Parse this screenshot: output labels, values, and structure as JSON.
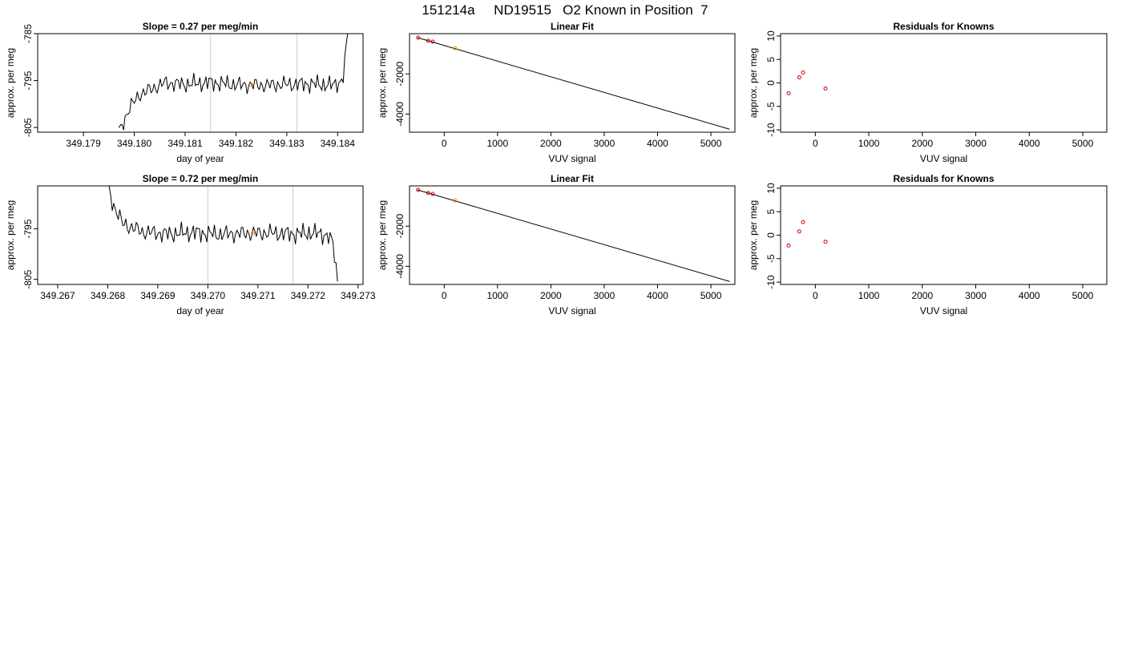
{
  "page_title": "151214a     ND19515   O2 Known in Position  7",
  "colors": {
    "trace": "#000000",
    "known_point": "#cc0000",
    "sample_point": "#ff8c00",
    "marker_line": "#cccccc",
    "axis": "#000000"
  },
  "chart_data": [
    {
      "id": "p1",
      "type": "line",
      "title": "Slope =  0.27  per meg/min",
      "xlabel": "day of year",
      "ylabel": "approx. per meg",
      "xlim": [
        349.1781,
        349.1845
      ],
      "ylim": [
        -806,
        -785
      ],
      "xticks": [
        "349.179",
        "349.180",
        "349.181",
        "349.182",
        "349.183",
        "349.184"
      ],
      "yticks": [
        "-805",
        "-795",
        "-785"
      ],
      "vlines": [
        349.1815,
        349.1832
      ],
      "highlight": {
        "x": 349.1823,
        "y": -795.9
      },
      "trace_start": 349.1797,
      "trace_end": 349.1842,
      "trace_step": 3e-05,
      "series": [
        {
          "x": [
            349.1797,
            349.1799,
            349.1801,
            349.1803,
            349.1806,
            349.181,
            349.1815,
            349.182,
            349.1825,
            349.183,
            349.1835,
            349.1839,
            349.1841,
            349.1842
          ],
          "y": [
            -806,
            -801,
            -798,
            -797,
            -795.5,
            -795.8,
            -795.4,
            -795.9,
            -796,
            -795.8,
            -795.7,
            -796,
            -795,
            -785
          ]
        }
      ]
    },
    {
      "id": "p2",
      "type": "scatter",
      "title": "Linear Fit",
      "xlabel": "VUV signal",
      "ylabel": "approx. per meg",
      "xlim": [
        -650,
        5450
      ],
      "ylim": [
        -4900,
        0
      ],
      "xticks": [
        "0",
        "1000",
        "2000",
        "3000",
        "4000",
        "5000"
      ],
      "yticks": [
        "-2000",
        "-4000"
      ],
      "line": {
        "x": [
          -500,
          5350
        ],
        "y": [
          -200,
          -4750
        ]
      },
      "known_points": {
        "x": [
          -490,
          -300,
          -215
        ],
        "y": [
          -200,
          -350,
          -400
        ]
      },
      "sample_point": {
        "x": 200,
        "y": -720
      }
    },
    {
      "id": "p3",
      "type": "scatter",
      "title": "Residuals for Knowns",
      "xlabel": "VUV signal",
      "ylabel": "approx. per meg",
      "xlim": [
        -650,
        5450
      ],
      "ylim": [
        -10.5,
        10.5
      ],
      "xticks": [
        "0",
        "1000",
        "2000",
        "3000",
        "4000",
        "5000"
      ],
      "yticks": [
        "10",
        "5",
        "0",
        "-5",
        "-10"
      ],
      "known_points": {
        "x": [
          -500,
          -300,
          -230,
          190
        ],
        "y": [
          -2.2,
          1.2,
          2.2,
          -1.2
        ]
      }
    },
    {
      "id": "p4",
      "type": "line",
      "title": "Slope =  0.72  per meg/min",
      "xlabel": "day of year",
      "ylabel": "approx. per meg",
      "xlim": [
        349.2666,
        349.2731
      ],
      "ylim": [
        -806,
        -786.5
      ],
      "xticks": [
        "349.267",
        "349.268",
        "349.269",
        "349.270",
        "349.271",
        "349.272",
        "349.273"
      ],
      "yticks": [
        "-805",
        "-795"
      ],
      "vlines": [
        349.27,
        349.2717
      ],
      "highlight": {
        "x": 349.2709,
        "y": -795.9
      },
      "trace_start": 349.268,
      "trace_end": 349.2726,
      "trace_step": 3e-05,
      "series": [
        {
          "x": [
            349.268,
            349.2681,
            349.2683,
            349.2687,
            349.2692,
            349.2697,
            349.2702,
            349.2707,
            349.2712,
            349.2717,
            349.2721,
            349.2724,
            349.2725,
            349.2726
          ],
          "y": [
            -786.5,
            -790,
            -794,
            -795.6,
            -796,
            -795.7,
            -796.1,
            -795.9,
            -795.8,
            -796,
            -795.8,
            -796.3,
            -798,
            -806
          ]
        }
      ]
    },
    {
      "id": "p5",
      "type": "scatter",
      "title": "Linear Fit",
      "xlabel": "VUV signal",
      "ylabel": "approx. per meg",
      "xlim": [
        -650,
        5450
      ],
      "ylim": [
        -4900,
        0
      ],
      "xticks": [
        "0",
        "1000",
        "2000",
        "3000",
        "4000",
        "5000"
      ],
      "yticks": [
        "-2000",
        "-4000"
      ],
      "line": {
        "x": [
          -500,
          5350
        ],
        "y": [
          -200,
          -4750
        ]
      },
      "known_points": {
        "x": [
          -490,
          -300,
          -215
        ],
        "y": [
          -200,
          -350,
          -400
        ]
      },
      "sample_point": {
        "x": 200,
        "y": -720
      }
    },
    {
      "id": "p6",
      "type": "scatter",
      "title": "Residuals for Knowns",
      "xlabel": "VUV signal",
      "ylabel": "approx. per meg",
      "xlim": [
        -650,
        5450
      ],
      "ylim": [
        -10.5,
        10.5
      ],
      "xticks": [
        "0",
        "1000",
        "2000",
        "3000",
        "4000",
        "5000"
      ],
      "yticks": [
        "10",
        "5",
        "0",
        "-5",
        "-10"
      ],
      "known_points": {
        "x": [
          -500,
          -300,
          -230,
          190
        ],
        "y": [
          -2.2,
          0.8,
          2.8,
          -1.4
        ]
      }
    }
  ]
}
